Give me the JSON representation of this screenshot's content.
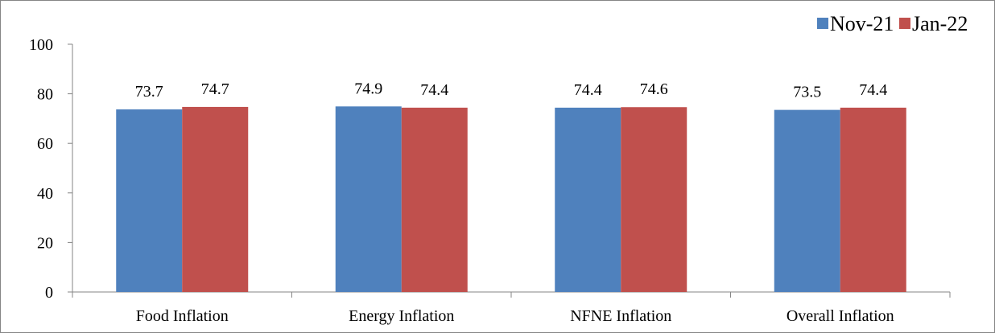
{
  "chart_data": {
    "type": "bar",
    "categories": [
      "Food Inflation",
      "Energy Inflation",
      "NFNE Inflation",
      "Overall Inflation"
    ],
    "series": [
      {
        "name": "Nov-21",
        "values": [
          73.7,
          74.9,
          74.4,
          73.5
        ],
        "color": "#4F81BD",
        "labels": [
          "73.7",
          "74.9",
          "74.4",
          "73.5"
        ]
      },
      {
        "name": "Jan-22",
        "values": [
          74.7,
          74.4,
          74.6,
          74.4
        ],
        "color": "#C0504D",
        "labels": [
          "74.7",
          "74.4",
          "74.6",
          "74.4"
        ]
      }
    ],
    "ylim": [
      0,
      100
    ],
    "yticks": [
      "0",
      "20",
      "40",
      "60",
      "80",
      "100"
    ],
    "grid": false,
    "legend_position": "top-right",
    "title": "",
    "xlabel": "",
    "ylabel": ""
  }
}
